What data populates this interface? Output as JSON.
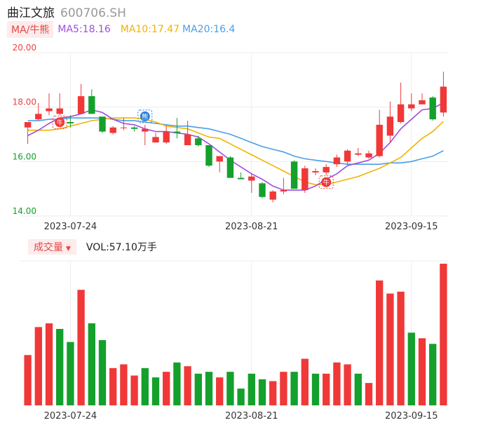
{
  "header": {
    "name": "曲江文旅",
    "code": "600706.SH"
  },
  "ma_bar": {
    "button": "MA/牛熊",
    "ma5": "MA5:18.16",
    "ma10": "MA10:17.47",
    "ma20": "MA20:16.4"
  },
  "volume_bar": {
    "button": "成交量",
    "text": "VOL:57.10万手"
  },
  "colors": {
    "up": "#f03838",
    "down": "#14a02c",
    "ma5": "#a04de0",
    "ma10": "#f0b400",
    "ma20": "#4a9ee8"
  },
  "chart_data": [
    {
      "type": "candlestick",
      "title": "",
      "ylim": [
        14.0,
        20.0
      ],
      "y_ticks": [
        "20.00",
        "18.00",
        "16.00",
        "14.00"
      ],
      "x_tick_labels": [
        {
          "index": 4,
          "label": "2023-07-24"
        },
        {
          "index": 21,
          "label": "2023-08-21"
        },
        {
          "index": 36,
          "label": "2023-09-15"
        }
      ],
      "ohlc": [
        [
          17.25,
          17.45,
          16.65,
          17.45
        ],
        [
          17.55,
          18.15,
          17.5,
          17.75
        ],
        [
          17.85,
          18.5,
          17.7,
          17.95
        ],
        [
          17.75,
          18.5,
          17.7,
          17.95
        ],
        [
          17.45,
          17.7,
          17.25,
          17.4
        ],
        [
          17.75,
          18.85,
          17.75,
          18.4
        ],
        [
          18.4,
          18.65,
          17.75,
          17.75
        ],
        [
          17.65,
          17.65,
          17.05,
          17.1
        ],
        [
          17.05,
          17.3,
          17.0,
          17.25
        ],
        [
          17.25,
          17.6,
          17.15,
          17.25
        ],
        [
          17.25,
          17.3,
          17.1,
          17.2
        ],
        [
          17.1,
          17.35,
          16.6,
          17.2
        ],
        [
          16.7,
          17.05,
          16.7,
          16.9
        ],
        [
          16.7,
          17.3,
          16.65,
          17.1
        ],
        [
          17.1,
          17.6,
          16.85,
          17.05
        ],
        [
          16.6,
          17.5,
          16.6,
          17.0
        ],
        [
          16.85,
          16.95,
          16.55,
          16.6
        ],
        [
          16.6,
          16.6,
          15.8,
          15.85
        ],
        [
          16.0,
          16.2,
          15.6,
          16.2
        ],
        [
          16.15,
          16.2,
          15.4,
          15.4
        ],
        [
          15.4,
          15.6,
          15.35,
          15.35
        ],
        [
          15.3,
          15.55,
          14.85,
          15.45
        ],
        [
          15.2,
          15.25,
          14.65,
          14.7
        ],
        [
          14.6,
          14.95,
          14.5,
          14.9
        ],
        [
          14.9,
          15.4,
          14.8,
          14.95
        ],
        [
          16.0,
          16.05,
          15.05,
          15.0
        ],
        [
          14.95,
          15.85,
          14.85,
          15.75
        ],
        [
          15.6,
          15.75,
          15.5,
          15.65
        ],
        [
          15.6,
          15.9,
          15.5,
          15.8
        ],
        [
          15.9,
          16.25,
          15.8,
          16.15
        ],
        [
          16.0,
          16.45,
          15.9,
          16.4
        ],
        [
          16.25,
          16.5,
          16.2,
          16.3
        ],
        [
          16.15,
          16.4,
          16.1,
          16.3
        ],
        [
          16.2,
          17.9,
          16.15,
          17.35
        ],
        [
          16.95,
          18.2,
          16.7,
          17.65
        ],
        [
          17.45,
          18.9,
          17.4,
          18.1
        ],
        [
          17.95,
          18.5,
          17.85,
          18.1
        ],
        [
          18.1,
          18.5,
          18.1,
          18.25
        ],
        [
          18.35,
          18.4,
          17.5,
          17.55
        ],
        [
          17.8,
          19.3,
          17.65,
          18.75
        ]
      ],
      "ma5": [
        16.95,
        17.15,
        17.4,
        17.6,
        17.65,
        17.75,
        17.9,
        17.8,
        17.55,
        17.4,
        17.35,
        17.2,
        17.1,
        17.1,
        17.05,
        17.0,
        16.9,
        16.65,
        16.35,
        16.05,
        15.8,
        15.55,
        15.35,
        15.1,
        14.95,
        14.95,
        14.95,
        15.1,
        15.35,
        15.55,
        15.85,
        15.95,
        16.05,
        16.3,
        16.7,
        17.2,
        17.55,
        17.9,
        17.95,
        18.16
      ],
      "ma10": [
        17.15,
        17.15,
        17.15,
        17.2,
        17.3,
        17.4,
        17.5,
        17.55,
        17.6,
        17.6,
        17.6,
        17.55,
        17.45,
        17.3,
        17.25,
        17.2,
        17.05,
        16.9,
        16.85,
        16.65,
        16.45,
        16.25,
        16.05,
        15.85,
        15.65,
        15.45,
        15.25,
        15.15,
        15.15,
        15.25,
        15.35,
        15.45,
        15.6,
        15.75,
        15.95,
        16.15,
        16.5,
        16.85,
        17.1,
        17.47
      ],
      "ma20": [
        17.5,
        17.5,
        17.55,
        17.55,
        17.6,
        17.6,
        17.6,
        17.6,
        17.55,
        17.5,
        17.5,
        17.45,
        17.4,
        17.35,
        17.3,
        17.3,
        17.25,
        17.2,
        17.1,
        17.0,
        16.85,
        16.7,
        16.55,
        16.45,
        16.35,
        16.2,
        16.1,
        16.05,
        16.0,
        15.95,
        15.9,
        15.9,
        15.9,
        15.9,
        15.95,
        15.95,
        16.0,
        16.1,
        16.2,
        16.4
      ],
      "markers": [
        {
          "index": 3,
          "label": "牛",
          "color": "#f03838"
        },
        {
          "index": 11,
          "label": "熊",
          "color": "#2a7fd8"
        },
        {
          "index": 28,
          "label": "牛",
          "color": "#f03838"
        }
      ]
    },
    {
      "type": "bar",
      "title": "",
      "name": "成交量",
      "values": [
        27,
        42,
        44,
        41,
        34,
        62,
        44,
        35,
        20,
        22,
        16,
        20,
        15,
        18,
        23,
        21,
        17,
        18,
        15,
        18,
        9,
        17,
        14,
        13,
        18,
        18,
        25,
        17,
        17,
        23,
        22,
        17,
        12,
        67,
        60,
        61,
        39,
        36,
        33,
        76
      ],
      "direction": [
        "up",
        "up",
        "up",
        "down",
        "down",
        "up",
        "down",
        "down",
        "up",
        "up",
        "up",
        "down",
        "down",
        "up",
        "down",
        "up",
        "down",
        "down",
        "up",
        "down",
        "down",
        "down",
        "down",
        "up",
        "up",
        "down",
        "up",
        "down",
        "up",
        "up",
        "up",
        "down",
        "up",
        "up",
        "up",
        "up",
        "down",
        "up",
        "down",
        "up"
      ],
      "x_tick_labels": [
        {
          "index": 4,
          "label": "2023-07-24"
        },
        {
          "index": 21,
          "label": "2023-08-21"
        },
        {
          "index": 36,
          "label": "2023-09-15"
        }
      ]
    }
  ]
}
